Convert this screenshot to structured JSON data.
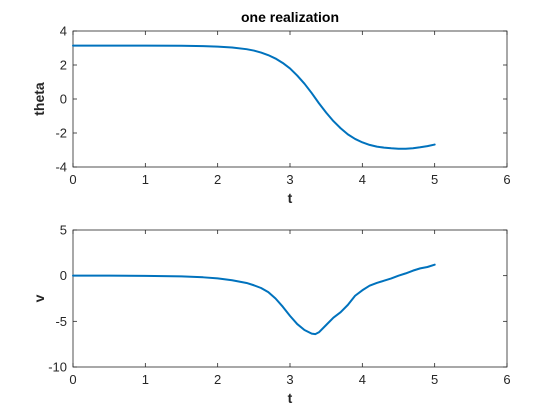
{
  "chart_data": [
    {
      "type": "line",
      "title": "one realization",
      "xlabel": "t",
      "ylabel": "theta",
      "xlim": [
        0,
        6
      ],
      "ylim": [
        -4,
        4
      ],
      "xticks": [
        0,
        1,
        2,
        3,
        4,
        5,
        6
      ],
      "yticks": [
        -4,
        -2,
        0,
        2,
        4
      ],
      "grid": false,
      "color": "#0072BD",
      "series": [
        {
          "x": [
            0,
            0.5,
            1.0,
            1.5,
            1.8,
            2.0,
            2.2,
            2.4,
            2.5,
            2.6,
            2.7,
            2.8,
            2.9,
            3.0,
            3.1,
            3.2,
            3.3,
            3.4,
            3.5,
            3.6,
            3.7,
            3.8,
            3.9,
            4.0,
            4.1,
            4.2,
            4.3,
            4.4,
            4.5,
            4.6,
            4.7,
            4.8,
            4.9,
            5.0
          ],
          "y": [
            3.14,
            3.14,
            3.14,
            3.13,
            3.11,
            3.08,
            3.03,
            2.93,
            2.85,
            2.73,
            2.58,
            2.38,
            2.12,
            1.8,
            1.38,
            0.9,
            0.35,
            -0.25,
            -0.8,
            -1.3,
            -1.72,
            -2.08,
            -2.35,
            -2.55,
            -2.7,
            -2.8,
            -2.86,
            -2.9,
            -2.93,
            -2.93,
            -2.9,
            -2.84,
            -2.77,
            -2.68
          ]
        }
      ]
    },
    {
      "type": "line",
      "title": "",
      "xlabel": "t",
      "ylabel": "v",
      "xlim": [
        0,
        6
      ],
      "ylim": [
        -10,
        5
      ],
      "xticks": [
        0,
        1,
        2,
        3,
        4,
        5,
        6
      ],
      "yticks": [
        -10,
        -5,
        0,
        5
      ],
      "grid": false,
      "color": "#0072BD",
      "series": [
        {
          "x": [
            0,
            0.5,
            1.0,
            1.5,
            1.8,
            2.0,
            2.2,
            2.4,
            2.5,
            2.6,
            2.7,
            2.8,
            2.9,
            3.0,
            3.1,
            3.2,
            3.3,
            3.35,
            3.4,
            3.5,
            3.6,
            3.7,
            3.8,
            3.9,
            4.0,
            4.1,
            4.2,
            4.3,
            4.4,
            4.5,
            4.6,
            4.7,
            4.8,
            4.9,
            5.0
          ],
          "y": [
            0.0,
            0.0,
            -0.02,
            -0.08,
            -0.18,
            -0.3,
            -0.5,
            -0.8,
            -1.05,
            -1.35,
            -1.8,
            -2.5,
            -3.4,
            -4.4,
            -5.3,
            -5.95,
            -6.35,
            -6.4,
            -6.2,
            -5.4,
            -4.6,
            -4.0,
            -3.2,
            -2.2,
            -1.6,
            -1.1,
            -0.8,
            -0.55,
            -0.3,
            0.0,
            0.25,
            0.55,
            0.8,
            0.95,
            1.2
          ]
        }
      ]
    }
  ]
}
